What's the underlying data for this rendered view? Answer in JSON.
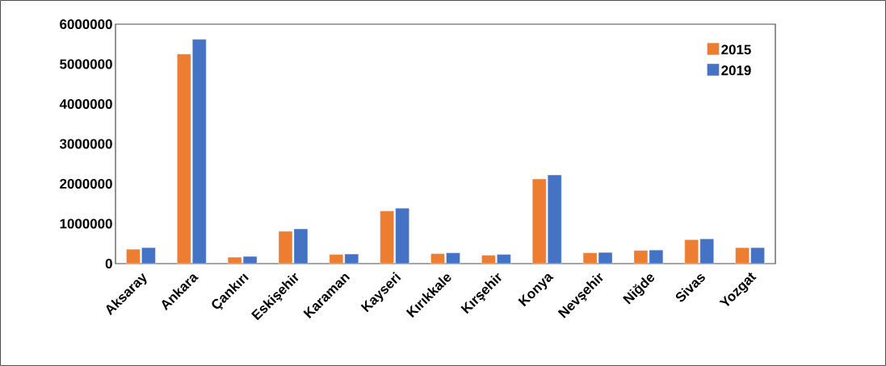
{
  "chart_data": {
    "type": "bar",
    "categories": [
      "Aksaray",
      "Ankara",
      "Çankırı",
      "Eskişehir",
      "Karaman",
      "Kayseri",
      "Kırıkkale",
      "Kırşehir",
      "Konya",
      "Nevşehir",
      "Niğde",
      "Sivas",
      "Yozgat"
    ],
    "series": [
      {
        "name": "2015",
        "color": "#ed7d31",
        "values": [
          360000,
          5250000,
          160000,
          810000,
          230000,
          1320000,
          250000,
          210000,
          2120000,
          270000,
          330000,
          600000,
          400000
        ]
      },
      {
        "name": "2019",
        "color": "#4472c4",
        "values": [
          400000,
          5620000,
          180000,
          870000,
          240000,
          1390000,
          270000,
          230000,
          2220000,
          280000,
          340000,
          620000,
          400000
        ]
      }
    ],
    "ylim": [
      0,
      6000000
    ],
    "yticks": [
      0,
      1000000,
      2000000,
      3000000,
      4000000,
      5000000,
      6000000
    ],
    "grid": false,
    "legend": "top right"
  }
}
